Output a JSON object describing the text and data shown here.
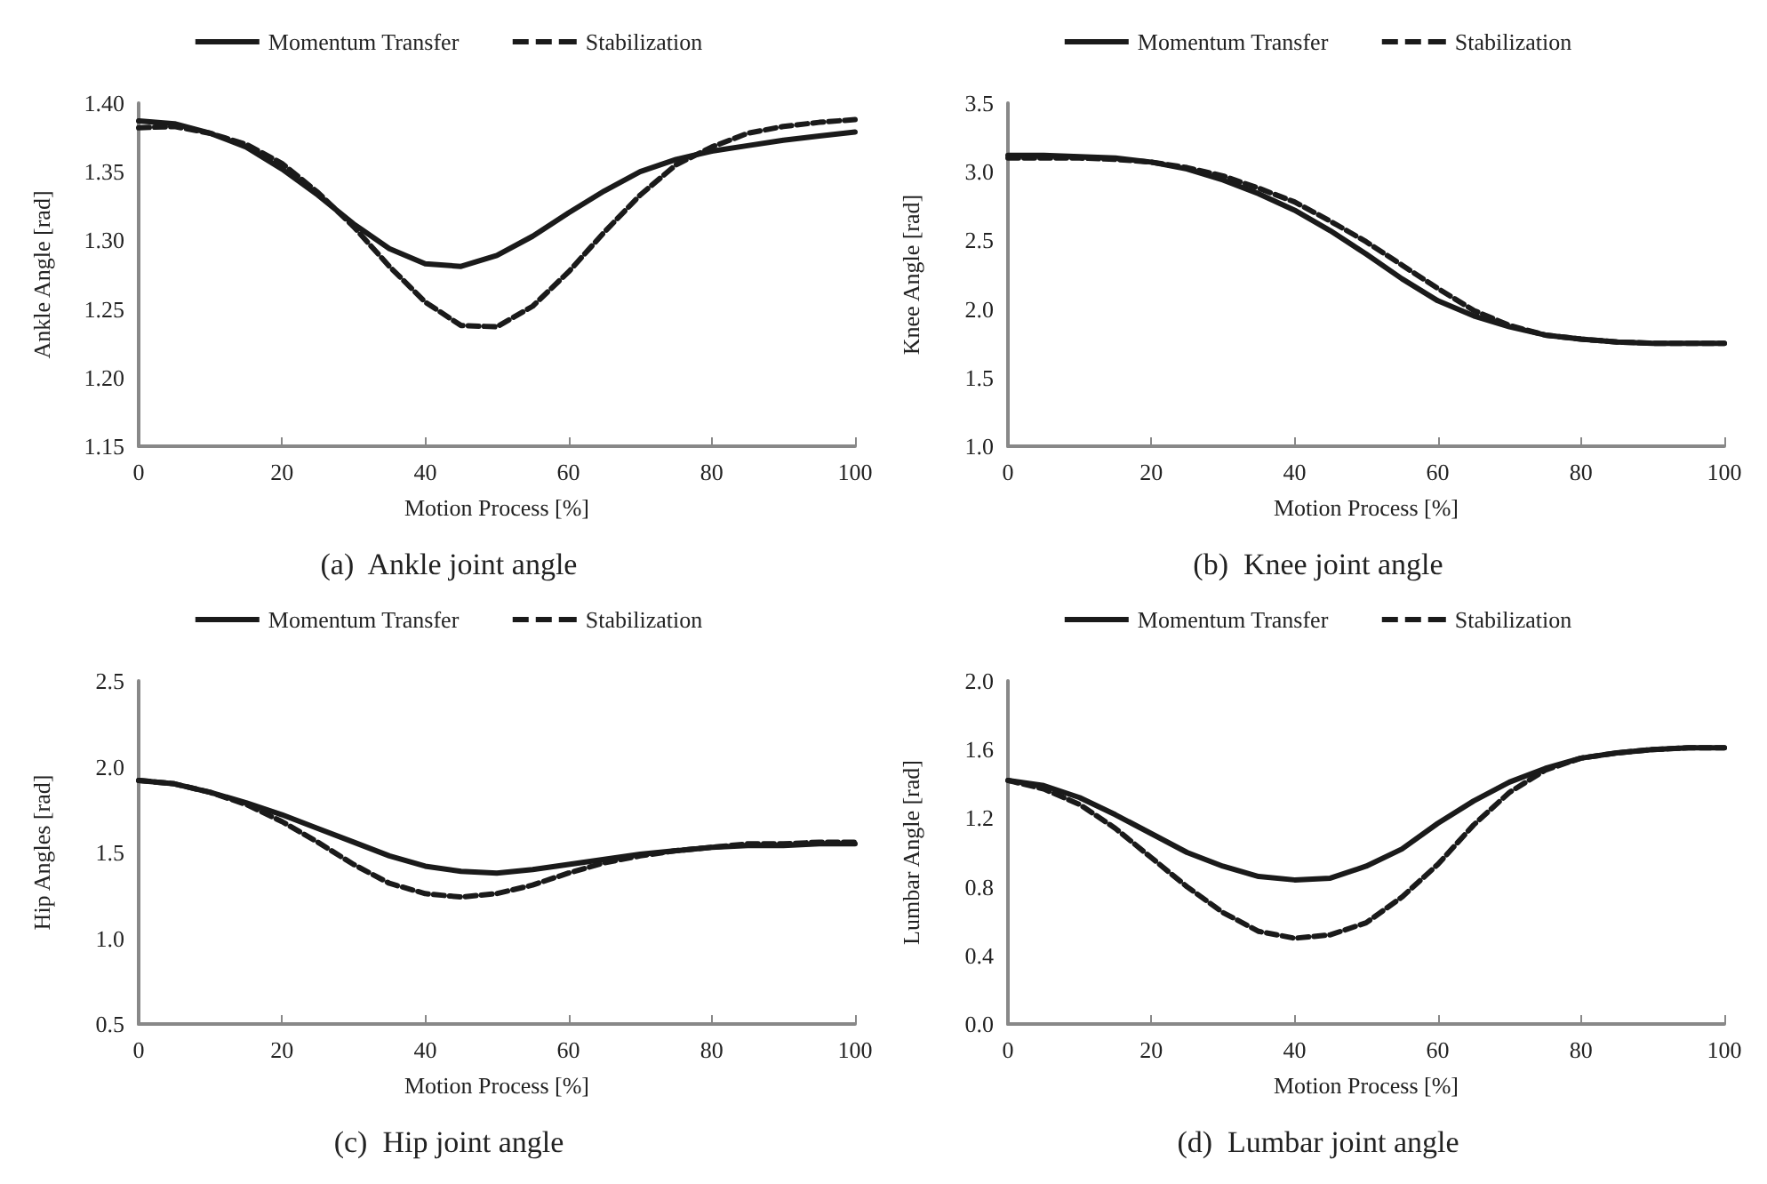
{
  "chart_data": [
    {
      "type": "line",
      "title": "(a)  Ankle joint angle",
      "xlabel": "Motion Process [%]",
      "ylabel": "Ankle Angle [rad]",
      "x": [
        0,
        5,
        10,
        15,
        20,
        25,
        30,
        35,
        40,
        45,
        50,
        55,
        60,
        65,
        70,
        75,
        80,
        85,
        90,
        95,
        100
      ],
      "xlim": [
        0,
        100
      ],
      "xticks": [
        0,
        20,
        40,
        60,
        80,
        100
      ],
      "ylim": [
        1.15,
        1.4
      ],
      "yticks": [
        {
          "value": 1.15,
          "label": "1.15"
        },
        {
          "value": 1.2,
          "label": "1.20"
        },
        {
          "value": 1.25,
          "label": "1.25"
        },
        {
          "value": 1.3,
          "label": "1.30"
        },
        {
          "value": 1.35,
          "label": "1.35"
        },
        {
          "value": 1.4,
          "label": "1.40"
        }
      ],
      "legend": "top",
      "grid": false,
      "marker": "none",
      "series": [
        {
          "name": "Momentum Transfer",
          "color": "#1a1a1a",
          "line_style": "solid",
          "values": [
            1.387,
            1.385,
            1.378,
            1.368,
            1.352,
            1.333,
            1.312,
            1.294,
            1.283,
            1.281,
            1.289,
            1.303,
            1.32,
            1.336,
            1.35,
            1.359,
            1.365,
            1.369,
            1.373,
            1.376,
            1.379
          ]
        },
        {
          "name": "Stabilization",
          "color": "#1a1a1a",
          "line_style": "dashed",
          "values": [
            1.382,
            1.383,
            1.378,
            1.37,
            1.356,
            1.335,
            1.31,
            1.281,
            1.255,
            1.238,
            1.237,
            1.252,
            1.277,
            1.306,
            1.333,
            1.355,
            1.368,
            1.378,
            1.383,
            1.386,
            1.388
          ]
        }
      ]
    },
    {
      "type": "line",
      "title": "(b)  Knee joint angle",
      "xlabel": "Motion Process [%]",
      "ylabel": "Knee Angle [rad]",
      "x": [
        0,
        5,
        10,
        15,
        20,
        25,
        30,
        35,
        40,
        45,
        50,
        55,
        60,
        65,
        70,
        75,
        80,
        85,
        90,
        95,
        100
      ],
      "xlim": [
        0,
        100
      ],
      "xticks": [
        0,
        20,
        40,
        60,
        80,
        100
      ],
      "ylim": [
        1,
        3.5
      ],
      "yticks": [
        {
          "value": 1,
          "label": "1.0"
        },
        {
          "value": 1.5,
          "label": "1.5"
        },
        {
          "value": 2,
          "label": "2.0"
        },
        {
          "value": 2.5,
          "label": "2.5"
        },
        {
          "value": 3,
          "label": "3.0"
        },
        {
          "value": 3.5,
          "label": "3.5"
        }
      ],
      "legend": "top",
      "grid": false,
      "marker": "none",
      "series": [
        {
          "name": "Momentum Transfer",
          "color": "#1a1a1a",
          "line_style": "solid",
          "values": [
            3.12,
            3.12,
            3.11,
            3.1,
            3.07,
            3.02,
            2.94,
            2.84,
            2.72,
            2.57,
            2.4,
            2.22,
            2.06,
            1.95,
            1.87,
            1.81,
            1.78,
            1.76,
            1.75,
            1.75,
            1.75
          ]
        },
        {
          "name": "Stabilization",
          "color": "#1a1a1a",
          "line_style": "dashed",
          "values": [
            3.1,
            3.1,
            3.1,
            3.09,
            3.07,
            3.03,
            2.97,
            2.88,
            2.78,
            2.64,
            2.49,
            2.32,
            2.15,
            1.99,
            1.88,
            1.81,
            1.78,
            1.76,
            1.75,
            1.75,
            1.75
          ]
        }
      ]
    },
    {
      "type": "line",
      "title": "(c)  Hip joint angle",
      "xlabel": "Motion Process [%]",
      "ylabel": "Hip Angles [rad]",
      "x": [
        0,
        5,
        10,
        15,
        20,
        25,
        30,
        35,
        40,
        45,
        50,
        55,
        60,
        65,
        70,
        75,
        80,
        85,
        90,
        95,
        100
      ],
      "xlim": [
        0,
        100
      ],
      "xticks": [
        0,
        20,
        40,
        60,
        80,
        100
      ],
      "ylim": [
        0.5,
        2.5
      ],
      "yticks": [
        {
          "value": 0.5,
          "label": "0.5"
        },
        {
          "value": 1,
          "label": "1.0"
        },
        {
          "value": 1.5,
          "label": "1.5"
        },
        {
          "value": 2,
          "label": "2.0"
        },
        {
          "value": 2.5,
          "label": "2.5"
        }
      ],
      "legend": "top",
      "grid": false,
      "marker": "none",
      "series": [
        {
          "name": "Momentum Transfer",
          "color": "#1a1a1a",
          "line_style": "solid",
          "values": [
            1.92,
            1.9,
            1.85,
            1.79,
            1.72,
            1.64,
            1.56,
            1.48,
            1.42,
            1.39,
            1.38,
            1.4,
            1.43,
            1.46,
            1.49,
            1.51,
            1.53,
            1.54,
            1.54,
            1.55,
            1.55
          ]
        },
        {
          "name": "Stabilization",
          "color": "#1a1a1a",
          "line_style": "dashed",
          "values": [
            1.92,
            1.9,
            1.85,
            1.78,
            1.68,
            1.56,
            1.43,
            1.32,
            1.26,
            1.24,
            1.26,
            1.31,
            1.38,
            1.44,
            1.48,
            1.51,
            1.53,
            1.55,
            1.55,
            1.56,
            1.56
          ]
        }
      ]
    },
    {
      "type": "line",
      "title": "(d)  Lumbar joint angle",
      "xlabel": "Motion Process [%]",
      "ylabel": "Lumbar Angle [rad]",
      "x": [
        0,
        5,
        10,
        15,
        20,
        25,
        30,
        35,
        40,
        45,
        50,
        55,
        60,
        65,
        70,
        75,
        80,
        85,
        90,
        95,
        100
      ],
      "xlim": [
        0,
        100
      ],
      "xticks": [
        0,
        20,
        40,
        60,
        80,
        100
      ],
      "ylim": [
        0,
        2
      ],
      "yticks": [
        {
          "value": 0,
          "label": "0.0"
        },
        {
          "value": 0.4,
          "label": "0.4"
        },
        {
          "value": 0.8,
          "label": "0.8"
        },
        {
          "value": 1.2,
          "label": "1.2"
        },
        {
          "value": 1.6,
          "label": "1.6"
        },
        {
          "value": 2,
          "label": "2.0"
        }
      ],
      "legend": "top",
      "grid": false,
      "marker": "none",
      "series": [
        {
          "name": "Momentum Transfer",
          "color": "#1a1a1a",
          "line_style": "solid",
          "values": [
            1.42,
            1.39,
            1.32,
            1.22,
            1.11,
            1,
            0.92,
            0.86,
            0.84,
            0.85,
            0.92,
            1.02,
            1.17,
            1.3,
            1.41,
            1.49,
            1.55,
            1.58,
            1.6,
            1.61,
            1.61
          ]
        },
        {
          "name": "Stabilization",
          "color": "#1a1a1a",
          "line_style": "dashed",
          "values": [
            1.42,
            1.37,
            1.28,
            1.14,
            0.97,
            0.8,
            0.65,
            0.54,
            0.5,
            0.52,
            0.59,
            0.74,
            0.93,
            1.16,
            1.35,
            1.48,
            1.55,
            1.58,
            1.6,
            1.61,
            1.61
          ]
        }
      ]
    }
  ]
}
